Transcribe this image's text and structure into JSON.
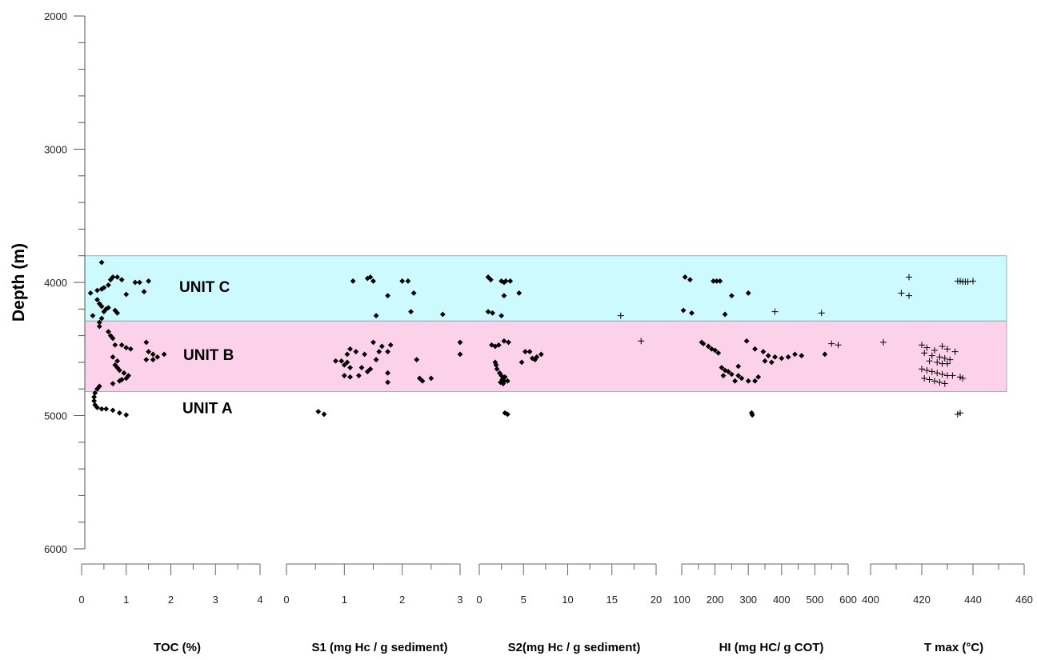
{
  "chart_data": {
    "type": "scatter",
    "ylabel": "Depth (m)",
    "y_axis": {
      "range": [
        2000,
        6000
      ],
      "inverted": true,
      "ticks": [
        2000,
        3000,
        4000,
        5000,
        6000
      ]
    },
    "units": [
      {
        "name": "UNIT C",
        "depth_range": [
          3800,
          4290
        ],
        "color": "#ccfaff"
      },
      {
        "name": "UNIT B",
        "depth_range": [
          4290,
          4820
        ],
        "color": "#fcd2ea"
      },
      {
        "name": "UNIT A",
        "depth_range": [
          4820,
          5000
        ],
        "color": null
      }
    ],
    "panels": [
      {
        "id": "toc",
        "xlabel": "TOC (%)",
        "xlim": [
          0,
          4
        ],
        "ticks": [
          "0",
          "1",
          "2",
          "3",
          "4"
        ],
        "marker": "diamond",
        "points": [
          [
            0.45,
            3850
          ],
          [
            0.8,
            3960
          ],
          [
            0.7,
            3960
          ],
          [
            0.65,
            3980
          ],
          [
            0.9,
            3980
          ],
          [
            1.2,
            4000
          ],
          [
            1.3,
            4000
          ],
          [
            1.5,
            3990
          ],
          [
            0.6,
            4020
          ],
          [
            0.5,
            4040
          ],
          [
            0.45,
            4050
          ],
          [
            0.35,
            4060
          ],
          [
            1.4,
            4070
          ],
          [
            1.0,
            4090
          ],
          [
            0.2,
            4080
          ],
          [
            0.35,
            4130
          ],
          [
            0.4,
            4160
          ],
          [
            0.45,
            4180
          ],
          [
            0.6,
            4190
          ],
          [
            0.55,
            4200
          ],
          [
            0.75,
            4210
          ],
          [
            0.8,
            4230
          ],
          [
            0.5,
            4220
          ],
          [
            0.25,
            4250
          ],
          [
            0.45,
            4270
          ],
          [
            0.4,
            4300
          ],
          [
            0.4,
            4330
          ],
          [
            0.6,
            4370
          ],
          [
            0.65,
            4400
          ],
          [
            0.7,
            4420
          ],
          [
            0.75,
            4470
          ],
          [
            0.9,
            4470
          ],
          [
            1.45,
            4450
          ],
          [
            1.0,
            4490
          ],
          [
            1.1,
            4500
          ],
          [
            1.5,
            4520
          ],
          [
            1.6,
            4540
          ],
          [
            1.7,
            4560
          ],
          [
            1.85,
            4540
          ],
          [
            1.45,
            4580
          ],
          [
            1.6,
            4580
          ],
          [
            0.7,
            4560
          ],
          [
            0.8,
            4590
          ],
          [
            0.75,
            4620
          ],
          [
            0.8,
            4640
          ],
          [
            0.85,
            4660
          ],
          [
            0.95,
            4680
          ],
          [
            1.05,
            4700
          ],
          [
            0.9,
            4730
          ],
          [
            1.0,
            4720
          ],
          [
            0.85,
            4740
          ],
          [
            0.7,
            4760
          ],
          [
            0.4,
            4780
          ],
          [
            0.35,
            4800
          ],
          [
            0.3,
            4830
          ],
          [
            0.28,
            4860
          ],
          [
            0.28,
            4890
          ],
          [
            0.3,
            4920
          ],
          [
            0.35,
            4940
          ],
          [
            0.45,
            4950
          ],
          [
            0.55,
            4950
          ],
          [
            0.7,
            4960
          ],
          [
            0.85,
            4980
          ],
          [
            1.0,
            4995
          ]
        ]
      },
      {
        "id": "s1",
        "xlabel": "S1 (mg Hc / g sediment)",
        "xlim": [
          0,
          3
        ],
        "ticks": [
          "0",
          "1",
          "2",
          "3"
        ],
        "marker": "diamond",
        "points": [
          [
            1.15,
            3990
          ],
          [
            1.4,
            3970
          ],
          [
            1.45,
            3960
          ],
          [
            1.5,
            3990
          ],
          [
            2.0,
            3990
          ],
          [
            2.1,
            3990
          ],
          [
            1.75,
            4100
          ],
          [
            2.2,
            4080
          ],
          [
            1.55,
            4250
          ],
          [
            2.15,
            4220
          ],
          [
            2.7,
            4240
          ],
          [
            3.0,
            4450
          ],
          [
            1.5,
            4450
          ],
          [
            1.65,
            4480
          ],
          [
            1.8,
            4470
          ],
          [
            1.1,
            4500
          ],
          [
            1.2,
            4520
          ],
          [
            1.05,
            4540
          ],
          [
            1.35,
            4540
          ],
          [
            1.6,
            4520
          ],
          [
            1.75,
            4520
          ],
          [
            0.85,
            4590
          ],
          [
            0.95,
            4590
          ],
          [
            1.05,
            4600
          ],
          [
            1.0,
            4620
          ],
          [
            1.1,
            4640
          ],
          [
            1.3,
            4640
          ],
          [
            1.45,
            4650
          ],
          [
            1.4,
            4670
          ],
          [
            1.75,
            4680
          ],
          [
            2.25,
            4580
          ],
          [
            1.55,
            4580
          ],
          [
            1.0,
            4700
          ],
          [
            1.1,
            4710
          ],
          [
            1.25,
            4700
          ],
          [
            2.3,
            4720
          ],
          [
            2.5,
            4720
          ],
          [
            2.35,
            4740
          ],
          [
            1.75,
            4750
          ],
          [
            3.0,
            4540
          ],
          [
            0.55,
            4970
          ],
          [
            0.65,
            4990
          ]
        ]
      },
      {
        "id": "s2",
        "xlabel": "S2(mg Hc / g sediment)",
        "xlim": [
          0,
          20
        ],
        "ticks": [
          "0",
          "5",
          "10",
          "15",
          "20"
        ],
        "points": [
          [
            1.0,
            3960
          ],
          [
            1.3,
            3980
          ],
          [
            2.5,
            3990
          ],
          [
            3.0,
            3990
          ],
          [
            3.5,
            3990
          ],
          [
            2.8,
            4000
          ],
          [
            4.5,
            4080
          ],
          [
            2.8,
            4100
          ],
          [
            1.0,
            4220
          ],
          [
            1.5,
            4230
          ],
          [
            2.5,
            4250
          ],
          [
            2.2,
            4470
          ],
          [
            2.8,
            4440
          ],
          [
            3.3,
            4450
          ],
          [
            1.8,
            4480
          ],
          [
            1.4,
            4470
          ],
          [
            5.2,
            4520
          ],
          [
            5.7,
            4520
          ],
          [
            6.5,
            4560
          ],
          [
            7.0,
            4540
          ],
          [
            6.3,
            4580
          ],
          [
            6.0,
            4570
          ],
          [
            4.8,
            4600
          ],
          [
            1.8,
            4600
          ],
          [
            1.9,
            4620
          ],
          [
            2.0,
            4650
          ],
          [
            2.3,
            4680
          ],
          [
            2.5,
            4700
          ],
          [
            2.9,
            4710
          ],
          [
            2.6,
            4730
          ],
          [
            2.8,
            4740
          ],
          [
            3.2,
            4740
          ],
          [
            2.4,
            4750
          ],
          [
            2.7,
            4760
          ],
          [
            2.9,
            4980
          ],
          [
            3.2,
            4990
          ]
        ],
        "plus_points": [
          [
            16,
            4250
          ],
          [
            18.3,
            4440
          ]
        ]
      },
      {
        "id": "hi",
        "xlabel": "HI (mg HC/ g  COT)",
        "xlim": [
          100,
          600
        ],
        "ticks": [
          "100",
          "200",
          "300",
          "400",
          "500",
          "600"
        ],
        "points": [
          [
            110,
            3960
          ],
          [
            125,
            3980
          ],
          [
            195,
            3990
          ],
          [
            205,
            3990
          ],
          [
            215,
            3990
          ],
          [
            300,
            4080
          ],
          [
            250,
            4100
          ],
          [
            105,
            4210
          ],
          [
            130,
            4230
          ],
          [
            230,
            4240
          ],
          [
            160,
            4450
          ],
          [
            165,
            4460
          ],
          [
            180,
            4480
          ],
          [
            190,
            4500
          ],
          [
            200,
            4510
          ],
          [
            210,
            4530
          ],
          [
            295,
            4440
          ],
          [
            320,
            4500
          ],
          [
            345,
            4520
          ],
          [
            360,
            4550
          ],
          [
            380,
            4560
          ],
          [
            400,
            4570
          ],
          [
            420,
            4560
          ],
          [
            440,
            4540
          ],
          [
            460,
            4550
          ],
          [
            350,
            4590
          ],
          [
            370,
            4600
          ],
          [
            220,
            4640
          ],
          [
            230,
            4660
          ],
          [
            240,
            4670
          ],
          [
            250,
            4690
          ],
          [
            270,
            4700
          ],
          [
            280,
            4720
          ],
          [
            300,
            4740
          ],
          [
            320,
            4740
          ],
          [
            330,
            4710
          ],
          [
            225,
            4700
          ],
          [
            260,
            4740
          ],
          [
            270,
            4630
          ],
          [
            310,
            4980
          ],
          [
            312,
            4995
          ],
          [
            530,
            4540
          ]
        ],
        "plus_points": [
          [
            380,
            4220
          ],
          [
            520,
            4230
          ],
          [
            550,
            4460
          ],
          [
            570,
            4470
          ]
        ]
      },
      {
        "id": "tmax",
        "xlabel": "T max (°C)",
        "xlim": [
          400,
          460
        ],
        "ticks": [
          "400",
          "420",
          "440",
          "460"
        ],
        "marker": "plus",
        "points": [
          [
            415,
            3960
          ],
          [
            434,
            3990
          ],
          [
            435,
            3990
          ],
          [
            436,
            3995
          ],
          [
            437,
            3995
          ],
          [
            438,
            3995
          ],
          [
            440,
            3990
          ],
          [
            412,
            4080
          ],
          [
            415,
            4100
          ],
          [
            420,
            4470
          ],
          [
            422,
            4490
          ],
          [
            428,
            4480
          ],
          [
            430,
            4500
          ],
          [
            425,
            4510
          ],
          [
            433,
            4520
          ],
          [
            421,
            4530
          ],
          [
            424,
            4550
          ],
          [
            427,
            4560
          ],
          [
            429,
            4570
          ],
          [
            431,
            4580
          ],
          [
            423,
            4590
          ],
          [
            426,
            4600
          ],
          [
            428,
            4610
          ],
          [
            430,
            4610
          ],
          [
            420,
            4650
          ],
          [
            422,
            4660
          ],
          [
            424,
            4670
          ],
          [
            426,
            4680
          ],
          [
            428,
            4690
          ],
          [
            430,
            4700
          ],
          [
            432,
            4700
          ],
          [
            435,
            4710
          ],
          [
            436,
            4720
          ],
          [
            421,
            4720
          ],
          [
            423,
            4730
          ],
          [
            425,
            4740
          ],
          [
            427,
            4750
          ],
          [
            429,
            4760
          ],
          [
            434,
            4990
          ],
          [
            435,
            4980
          ]
        ],
        "plus_points_left": [
          [
            405,
            4450
          ]
        ]
      }
    ]
  }
}
